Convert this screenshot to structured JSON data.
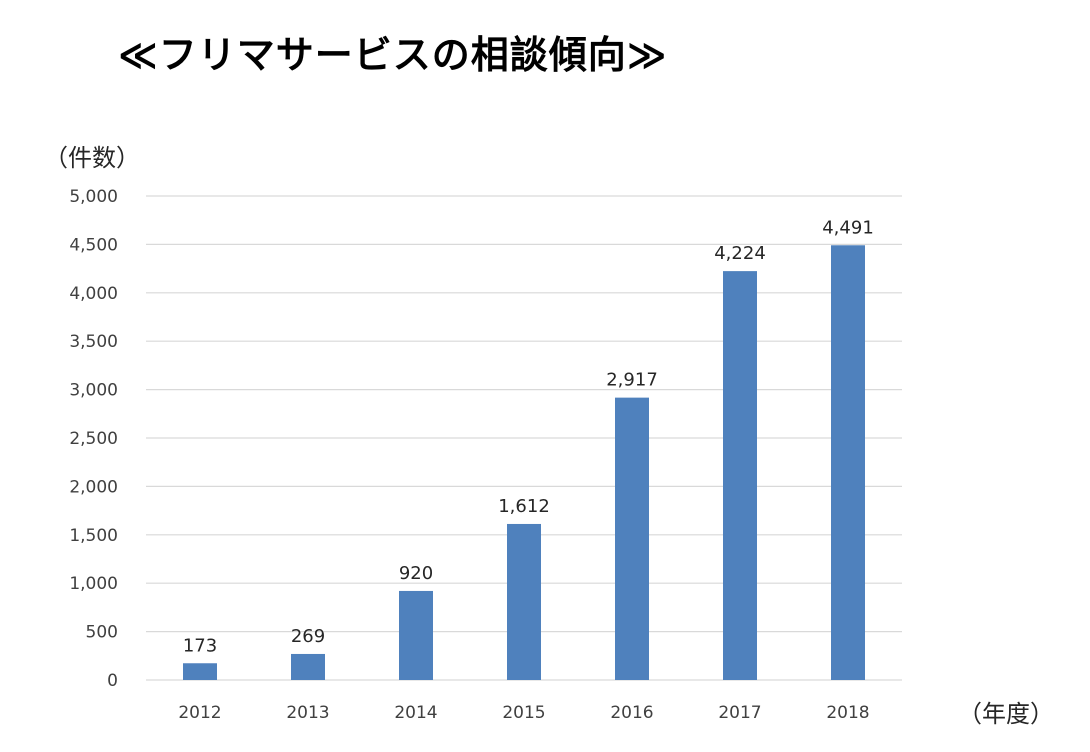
{
  "header": {
    "title": "≪フリマサービスの相談傾向≫"
  },
  "chart_data": {
    "type": "bar",
    "title": "≪フリマサービスの相談傾向≫",
    "ylabel": "（件数）",
    "xlabel": "（年度）",
    "categories": [
      "2012",
      "2013",
      "2014",
      "2015",
      "2016",
      "2017",
      "2018"
    ],
    "values": [
      173,
      269,
      920,
      1612,
      2917,
      4224,
      4491
    ],
    "data_labels": [
      "173",
      "269",
      "920",
      "1,612",
      "2,917",
      "4,224",
      "4,491"
    ],
    "ylim": [
      0,
      5000
    ],
    "yticks": [
      0,
      500,
      1000,
      1500,
      2000,
      2500,
      3000,
      3500,
      4000,
      4500,
      5000
    ],
    "ytick_labels": [
      "0",
      "500",
      "1,000",
      "1,500",
      "2,000",
      "2,500",
      "3,000",
      "3,500",
      "4,000",
      "4,500",
      "5,000"
    ],
    "grid": true,
    "legend": "none",
    "bar_color": "#4F81BD",
    "grid_color": "#D9D9D9"
  }
}
